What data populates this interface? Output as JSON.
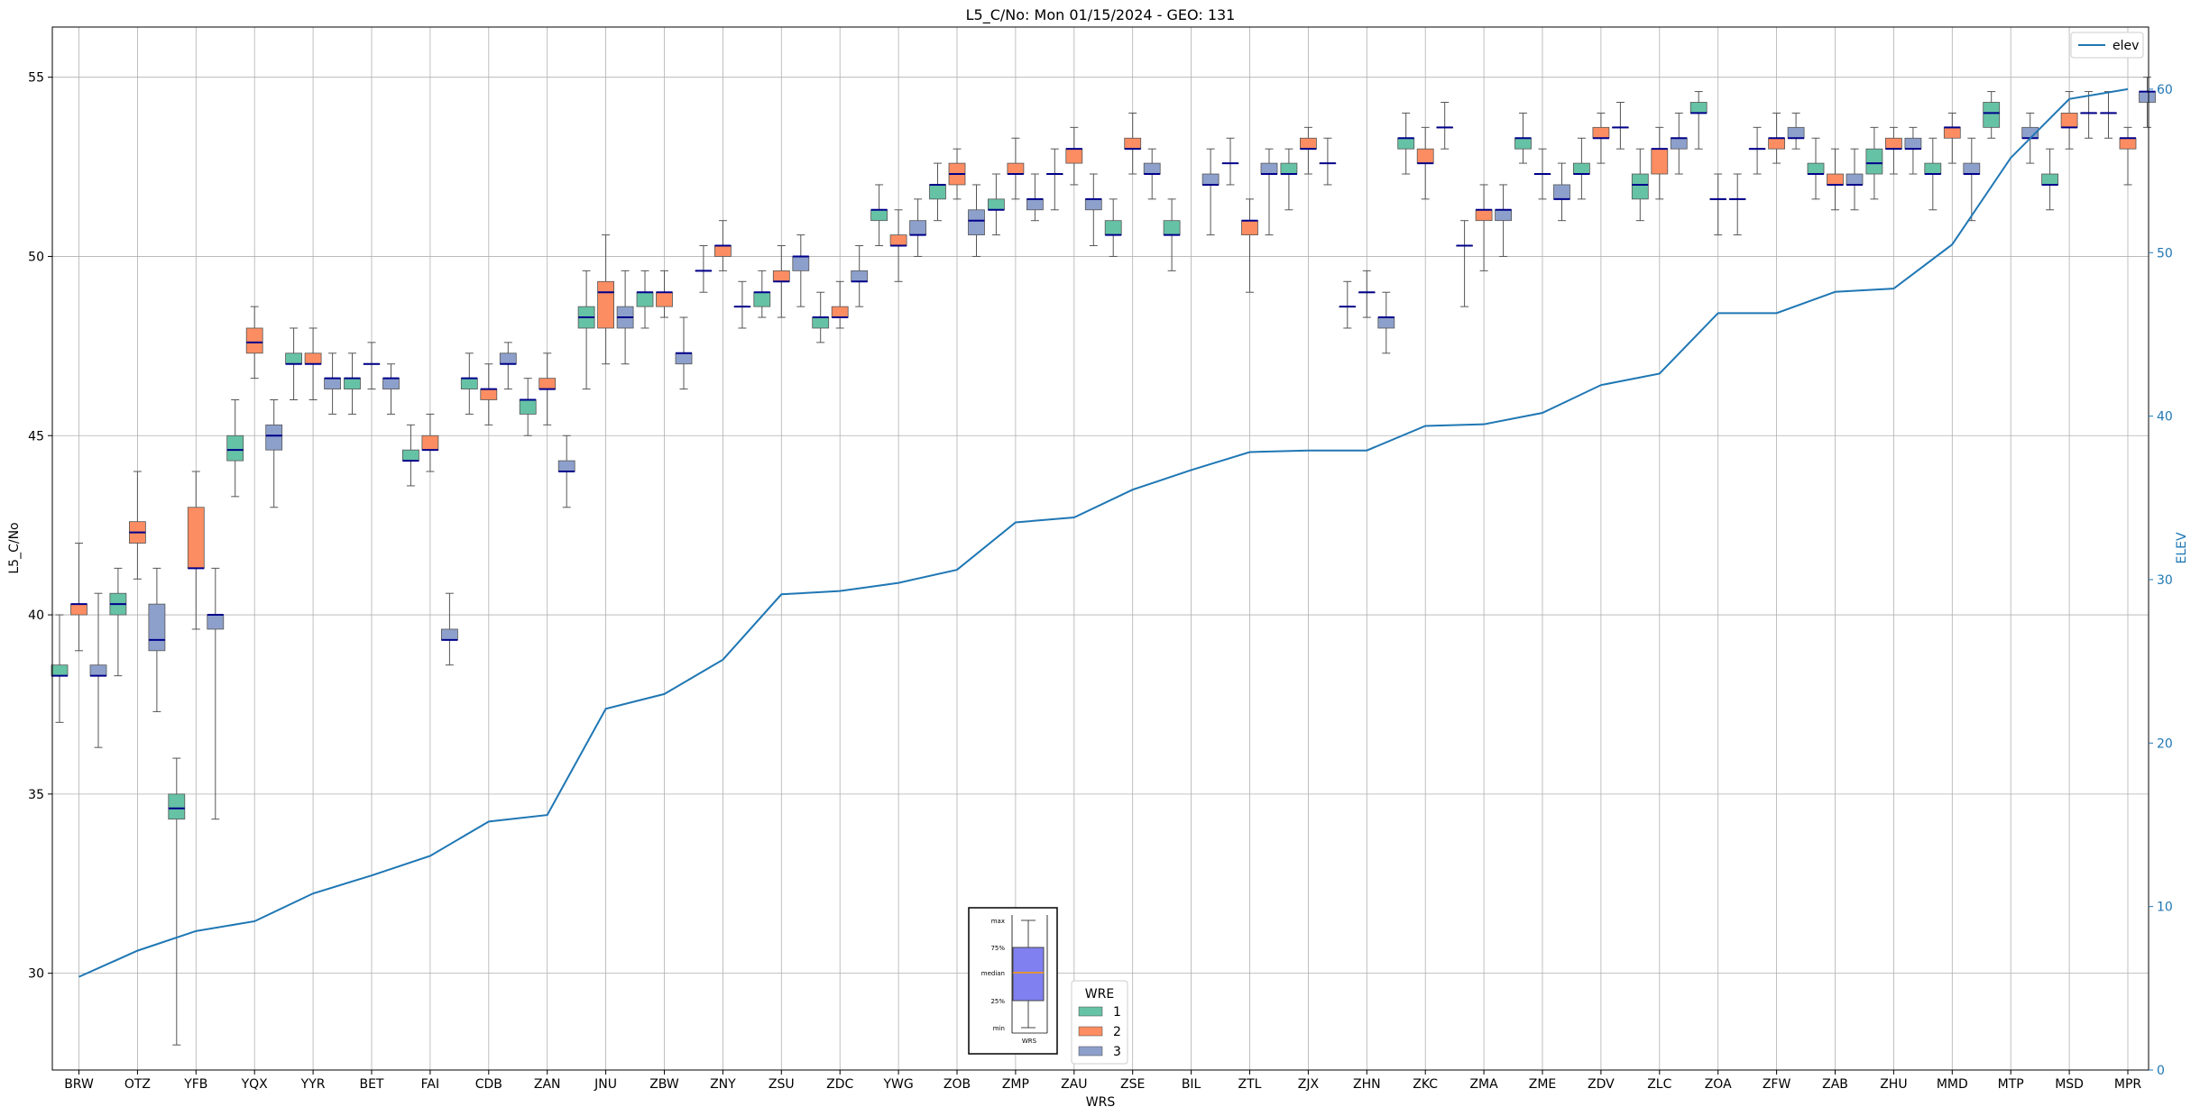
{
  "chart_data": {
    "type": "box",
    "title": "L5_C/No: Mon 01/15/2024 - GEO: 131",
    "xlabel": "WRS",
    "ylabel": "L5_C/No",
    "ylabel2": "ELEV",
    "ylim": [
      27.3,
      56.4
    ],
    "ylim2": [
      0,
      63.8
    ],
    "yticks": [
      30,
      35,
      40,
      45,
      50,
      55
    ],
    "yticks2": [
      0,
      10,
      20,
      30,
      40,
      50,
      60
    ],
    "grid": true,
    "categories": [
      "BRW",
      "OTZ",
      "YFB",
      "YQX",
      "YYR",
      "BET",
      "FAI",
      "CDB",
      "ZAN",
      "JNU",
      "ZBW",
      "ZNY",
      "ZSU",
      "ZDC",
      "YWG",
      "ZOB",
      "ZMP",
      "ZAU",
      "ZSE",
      "BIL",
      "ZTL",
      "ZJX",
      "ZHN",
      "ZKC",
      "ZMA",
      "ZME",
      "ZDV",
      "ZLC",
      "ZOA",
      "ZFW",
      "ZAB",
      "ZHU",
      "MMD",
      "MTP",
      "MSD",
      "MPR"
    ],
    "wre_colors": {
      "1": "#66c2a5",
      "2": "#fc8d62",
      "3": "#8da0cb"
    },
    "median_color": "#00008b",
    "boxes": [
      {
        "cat": "BRW",
        "wre": 1,
        "min": 37.0,
        "q1": 38.3,
        "med": 38.3,
        "q3": 38.6,
        "max": 40.0
      },
      {
        "cat": "BRW",
        "wre": 2,
        "min": 39.0,
        "q1": 40.0,
        "med": 40.3,
        "q3": 40.3,
        "max": 42.0
      },
      {
        "cat": "BRW",
        "wre": 3,
        "min": 36.3,
        "q1": 38.3,
        "med": 38.3,
        "q3": 38.6,
        "max": 40.6
      },
      {
        "cat": "OTZ",
        "wre": 1,
        "min": 38.3,
        "q1": 40.0,
        "med": 40.3,
        "q3": 40.6,
        "max": 41.3
      },
      {
        "cat": "OTZ",
        "wre": 2,
        "min": 41.0,
        "q1": 42.0,
        "med": 42.3,
        "q3": 42.6,
        "max": 44.0
      },
      {
        "cat": "OTZ",
        "wre": 3,
        "min": 37.3,
        "q1": 39.0,
        "med": 39.3,
        "q3": 40.3,
        "max": 41.3
      },
      {
        "cat": "YFB",
        "wre": 1,
        "min": 28.0,
        "q1": 34.3,
        "med": 34.6,
        "q3": 35.0,
        "max": 36.0
      },
      {
        "cat": "YFB",
        "wre": 2,
        "min": 39.6,
        "q1": 41.3,
        "med": 41.3,
        "q3": 43.0,
        "max": 44.0
      },
      {
        "cat": "YFB",
        "wre": 3,
        "min": 34.3,
        "q1": 39.6,
        "med": 40.0,
        "q3": 40.0,
        "max": 41.3
      },
      {
        "cat": "YQX",
        "wre": 1,
        "min": 43.3,
        "q1": 44.3,
        "med": 44.6,
        "q3": 45.0,
        "max": 46.0
      },
      {
        "cat": "YQX",
        "wre": 2,
        "min": 46.6,
        "q1": 47.3,
        "med": 47.6,
        "q3": 48.0,
        "max": 48.6
      },
      {
        "cat": "YQX",
        "wre": 3,
        "min": 43.0,
        "q1": 44.6,
        "med": 45.0,
        "q3": 45.3,
        "max": 46.0
      },
      {
        "cat": "YYR",
        "wre": 1,
        "min": 46.0,
        "q1": 47.0,
        "med": 47.0,
        "q3": 47.3,
        "max": 48.0
      },
      {
        "cat": "YYR",
        "wre": 2,
        "min": 46.0,
        "q1": 47.0,
        "med": 47.0,
        "q3": 47.3,
        "max": 48.0
      },
      {
        "cat": "YYR",
        "wre": 3,
        "min": 45.6,
        "q1": 46.3,
        "med": 46.6,
        "q3": 46.6,
        "max": 47.3
      },
      {
        "cat": "BET",
        "wre": 1,
        "min": 45.6,
        "q1": 46.3,
        "med": 46.6,
        "q3": 46.6,
        "max": 47.3
      },
      {
        "cat": "BET",
        "wre": 2,
        "min": 46.3,
        "q1": 47.0,
        "med": 47.0,
        "q3": 47.0,
        "max": 47.6
      },
      {
        "cat": "BET",
        "wre": 3,
        "min": 45.6,
        "q1": 46.3,
        "med": 46.6,
        "q3": 46.6,
        "max": 47.0
      },
      {
        "cat": "FAI",
        "wre": 1,
        "min": 43.6,
        "q1": 44.3,
        "med": 44.3,
        "q3": 44.6,
        "max": 45.3
      },
      {
        "cat": "FAI",
        "wre": 2,
        "min": 44.0,
        "q1": 44.6,
        "med": 44.6,
        "q3": 45.0,
        "max": 45.6
      },
      {
        "cat": "FAI",
        "wre": 3,
        "min": 38.6,
        "q1": 39.3,
        "med": 39.3,
        "q3": 39.6,
        "max": 40.6
      },
      {
        "cat": "CDB",
        "wre": 1,
        "min": 45.6,
        "q1": 46.3,
        "med": 46.6,
        "q3": 46.6,
        "max": 47.3
      },
      {
        "cat": "CDB",
        "wre": 2,
        "min": 45.3,
        "q1": 46.0,
        "med": 46.3,
        "q3": 46.3,
        "max": 47.0
      },
      {
        "cat": "CDB",
        "wre": 3,
        "min": 46.3,
        "q1": 47.0,
        "med": 47.0,
        "q3": 47.3,
        "max": 47.6
      },
      {
        "cat": "ZAN",
        "wre": 1,
        "min": 45.0,
        "q1": 45.6,
        "med": 46.0,
        "q3": 46.0,
        "max": 46.6
      },
      {
        "cat": "ZAN",
        "wre": 2,
        "min": 45.3,
        "q1": 46.3,
        "med": 46.3,
        "q3": 46.6,
        "max": 47.3
      },
      {
        "cat": "ZAN",
        "wre": 3,
        "min": 43.0,
        "q1": 44.0,
        "med": 44.0,
        "q3": 44.3,
        "max": 45.0
      },
      {
        "cat": "JNU",
        "wre": 1,
        "min": 46.3,
        "q1": 48.0,
        "med": 48.3,
        "q3": 48.6,
        "max": 49.6
      },
      {
        "cat": "JNU",
        "wre": 2,
        "min": 47.0,
        "q1": 48.0,
        "med": 49.0,
        "q3": 49.3,
        "max": 50.6
      },
      {
        "cat": "JNU",
        "wre": 3,
        "min": 47.0,
        "q1": 48.0,
        "med": 48.3,
        "q3": 48.6,
        "max": 49.6
      },
      {
        "cat": "ZBW",
        "wre": 1,
        "min": 48.0,
        "q1": 48.6,
        "med": 49.0,
        "q3": 49.0,
        "max": 49.6
      },
      {
        "cat": "ZBW",
        "wre": 2,
        "min": 48.3,
        "q1": 48.6,
        "med": 49.0,
        "q3": 49.0,
        "max": 49.6
      },
      {
        "cat": "ZBW",
        "wre": 3,
        "min": 46.3,
        "q1": 47.0,
        "med": 47.3,
        "q3": 47.3,
        "max": 48.3
      },
      {
        "cat": "ZNY",
        "wre": 1,
        "min": 49.0,
        "q1": 49.6,
        "med": 49.6,
        "q3": 49.6,
        "max": 50.3
      },
      {
        "cat": "ZNY",
        "wre": 2,
        "min": 49.6,
        "q1": 50.0,
        "med": 50.3,
        "q3": 50.3,
        "max": 51.0
      },
      {
        "cat": "ZNY",
        "wre": 3,
        "min": 48.0,
        "q1": 48.6,
        "med": 48.6,
        "q3": 48.6,
        "max": 49.3
      },
      {
        "cat": "ZSU",
        "wre": 1,
        "min": 48.3,
        "q1": 48.6,
        "med": 49.0,
        "q3": 49.0,
        "max": 49.6
      },
      {
        "cat": "ZSU",
        "wre": 2,
        "min": 48.3,
        "q1": 49.3,
        "med": 49.3,
        "q3": 49.6,
        "max": 50.3
      },
      {
        "cat": "ZSU",
        "wre": 3,
        "min": 48.6,
        "q1": 49.6,
        "med": 50.0,
        "q3": 50.0,
        "max": 50.6
      },
      {
        "cat": "ZDC",
        "wre": 1,
        "min": 47.6,
        "q1": 48.0,
        "med": 48.3,
        "q3": 48.3,
        "max": 49.0
      },
      {
        "cat": "ZDC",
        "wre": 2,
        "min": 48.0,
        "q1": 48.3,
        "med": 48.3,
        "q3": 48.6,
        "max": 49.3
      },
      {
        "cat": "ZDC",
        "wre": 3,
        "min": 48.6,
        "q1": 49.3,
        "med": 49.3,
        "q3": 49.6,
        "max": 50.3
      },
      {
        "cat": "YWG",
        "wre": 1,
        "min": 50.3,
        "q1": 51.0,
        "med": 51.3,
        "q3": 51.3,
        "max": 52.0
      },
      {
        "cat": "YWG",
        "wre": 2,
        "min": 49.3,
        "q1": 50.3,
        "med": 50.3,
        "q3": 50.6,
        "max": 51.3
      },
      {
        "cat": "YWG",
        "wre": 3,
        "min": 50.0,
        "q1": 50.6,
        "med": 50.6,
        "q3": 51.0,
        "max": 51.6
      },
      {
        "cat": "ZOB",
        "wre": 1,
        "min": 51.0,
        "q1": 51.6,
        "med": 52.0,
        "q3": 52.0,
        "max": 52.6
      },
      {
        "cat": "ZOB",
        "wre": 2,
        "min": 51.6,
        "q1": 52.0,
        "med": 52.3,
        "q3": 52.6,
        "max": 53.0
      },
      {
        "cat": "ZOB",
        "wre": 3,
        "min": 50.0,
        "q1": 50.6,
        "med": 51.0,
        "q3": 51.3,
        "max": 52.0
      },
      {
        "cat": "ZMP",
        "wre": 1,
        "min": 50.6,
        "q1": 51.3,
        "med": 51.3,
        "q3": 51.6,
        "max": 52.3
      },
      {
        "cat": "ZMP",
        "wre": 2,
        "min": 51.6,
        "q1": 52.3,
        "med": 52.3,
        "q3": 52.6,
        "max": 53.3
      },
      {
        "cat": "ZMP",
        "wre": 3,
        "min": 51.0,
        "q1": 51.3,
        "med": 51.6,
        "q3": 51.6,
        "max": 52.3
      },
      {
        "cat": "ZAU",
        "wre": 1,
        "min": 51.3,
        "q1": 52.3,
        "med": 52.3,
        "q3": 52.3,
        "max": 53.0
      },
      {
        "cat": "ZAU",
        "wre": 2,
        "min": 52.0,
        "q1": 52.6,
        "med": 53.0,
        "q3": 53.0,
        "max": 53.6
      },
      {
        "cat": "ZAU",
        "wre": 3,
        "min": 50.3,
        "q1": 51.3,
        "med": 51.6,
        "q3": 51.6,
        "max": 52.3
      },
      {
        "cat": "ZSE",
        "wre": 1,
        "min": 50.0,
        "q1": 50.6,
        "med": 50.6,
        "q3": 51.0,
        "max": 51.6
      },
      {
        "cat": "ZSE",
        "wre": 2,
        "min": 52.3,
        "q1": 53.0,
        "med": 53.0,
        "q3": 53.3,
        "max": 54.0
      },
      {
        "cat": "ZSE",
        "wre": 3,
        "min": 51.6,
        "q1": 52.3,
        "med": 52.3,
        "q3": 52.6,
        "max": 53.0
      },
      {
        "cat": "BIL",
        "wre": 1,
        "min": 49.6,
        "q1": 50.6,
        "med": 50.6,
        "q3": 51.0,
        "max": 51.6
      },
      {
        "cat": "BIL",
        "wre": 3,
        "min": 50.6,
        "q1": 52.0,
        "med": 52.0,
        "q3": 52.3,
        "max": 53.0
      },
      {
        "cat": "ZTL",
        "wre": 1,
        "min": 52.0,
        "q1": 52.6,
        "med": 52.6,
        "q3": 52.6,
        "max": 53.3
      },
      {
        "cat": "ZTL",
        "wre": 2,
        "min": 49.0,
        "q1": 50.6,
        "med": 51.0,
        "q3": 51.0,
        "max": 51.6
      },
      {
        "cat": "ZTL",
        "wre": 3,
        "min": 50.6,
        "q1": 52.3,
        "med": 52.3,
        "q3": 52.6,
        "max": 53.0
      },
      {
        "cat": "ZJX",
        "wre": 1,
        "min": 51.3,
        "q1": 52.3,
        "med": 52.3,
        "q3": 52.6,
        "max": 53.0
      },
      {
        "cat": "ZJX",
        "wre": 2,
        "min": 52.3,
        "q1": 53.0,
        "med": 53.0,
        "q3": 53.3,
        "max": 53.6
      },
      {
        "cat": "ZJX",
        "wre": 3,
        "min": 52.0,
        "q1": 52.6,
        "med": 52.6,
        "q3": 52.6,
        "max": 53.3
      },
      {
        "cat": "ZHN",
        "wre": 1,
        "min": 48.0,
        "q1": 48.6,
        "med": 48.6,
        "q3": 48.6,
        "max": 49.3
      },
      {
        "cat": "ZHN",
        "wre": 2,
        "min": 48.3,
        "q1": 49.0,
        "med": 49.0,
        "q3": 49.0,
        "max": 49.6
      },
      {
        "cat": "ZHN",
        "wre": 3,
        "min": 47.3,
        "q1": 48.0,
        "med": 48.3,
        "q3": 48.3,
        "max": 49.0
      },
      {
        "cat": "ZKC",
        "wre": 1,
        "min": 52.3,
        "q1": 53.0,
        "med": 53.3,
        "q3": 53.3,
        "max": 54.0
      },
      {
        "cat": "ZKC",
        "wre": 2,
        "min": 51.6,
        "q1": 52.6,
        "med": 52.6,
        "q3": 53.0,
        "max": 53.6
      },
      {
        "cat": "ZKC",
        "wre": 3,
        "min": 53.0,
        "q1": 53.6,
        "med": 53.6,
        "q3": 53.6,
        "max": 54.3
      },
      {
        "cat": "ZMA",
        "wre": 1,
        "min": 48.6,
        "q1": 50.3,
        "med": 50.3,
        "q3": 50.3,
        "max": 51.0
      },
      {
        "cat": "ZMA",
        "wre": 2,
        "min": 49.6,
        "q1": 51.0,
        "med": 51.3,
        "q3": 51.3,
        "max": 52.0
      },
      {
        "cat": "ZMA",
        "wre": 3,
        "min": 50.0,
        "q1": 51.0,
        "med": 51.3,
        "q3": 51.3,
        "max": 52.0
      },
      {
        "cat": "ZME",
        "wre": 1,
        "min": 52.6,
        "q1": 53.0,
        "med": 53.3,
        "q3": 53.3,
        "max": 54.0
      },
      {
        "cat": "ZME",
        "wre": 2,
        "min": 51.6,
        "q1": 52.3,
        "med": 52.3,
        "q3": 52.3,
        "max": 53.0
      },
      {
        "cat": "ZME",
        "wre": 3,
        "min": 51.0,
        "q1": 51.6,
        "med": 51.6,
        "q3": 52.0,
        "max": 52.6
      },
      {
        "cat": "ZDV",
        "wre": 1,
        "min": 51.6,
        "q1": 52.3,
        "med": 52.3,
        "q3": 52.6,
        "max": 53.3
      },
      {
        "cat": "ZDV",
        "wre": 2,
        "min": 52.6,
        "q1": 53.3,
        "med": 53.3,
        "q3": 53.6,
        "max": 54.0
      },
      {
        "cat": "ZDV",
        "wre": 3,
        "min": 53.0,
        "q1": 53.6,
        "med": 53.6,
        "q3": 53.6,
        "max": 54.3
      },
      {
        "cat": "ZLC",
        "wre": 1,
        "min": 51.0,
        "q1": 51.6,
        "med": 52.0,
        "q3": 52.3,
        "max": 53.0
      },
      {
        "cat": "ZLC",
        "wre": 2,
        "min": 51.6,
        "q1": 52.3,
        "med": 53.0,
        "q3": 53.0,
        "max": 53.6
      },
      {
        "cat": "ZLC",
        "wre": 3,
        "min": 52.3,
        "q1": 53.0,
        "med": 53.3,
        "q3": 53.3,
        "max": 54.0
      },
      {
        "cat": "ZOA",
        "wre": 1,
        "min": 53.0,
        "q1": 54.0,
        "med": 54.0,
        "q3": 54.3,
        "max": 54.6
      },
      {
        "cat": "ZOA",
        "wre": 2,
        "min": 50.6,
        "q1": 51.6,
        "med": 51.6,
        "q3": 51.6,
        "max": 52.3
      },
      {
        "cat": "ZOA",
        "wre": 3,
        "min": 50.6,
        "q1": 51.6,
        "med": 51.6,
        "q3": 51.6,
        "max": 52.3
      },
      {
        "cat": "ZFW",
        "wre": 1,
        "min": 52.3,
        "q1": 53.0,
        "med": 53.0,
        "q3": 53.0,
        "max": 53.6
      },
      {
        "cat": "ZFW",
        "wre": 2,
        "min": 52.6,
        "q1": 53.0,
        "med": 53.3,
        "q3": 53.3,
        "max": 54.0
      },
      {
        "cat": "ZFW",
        "wre": 3,
        "min": 53.0,
        "q1": 53.3,
        "med": 53.3,
        "q3": 53.6,
        "max": 54.0
      },
      {
        "cat": "ZAB",
        "wre": 1,
        "min": 51.6,
        "q1": 52.3,
        "med": 52.3,
        "q3": 52.6,
        "max": 53.3
      },
      {
        "cat": "ZAB",
        "wre": 2,
        "min": 51.3,
        "q1": 52.0,
        "med": 52.0,
        "q3": 52.3,
        "max": 53.0
      },
      {
        "cat": "ZAB",
        "wre": 3,
        "min": 51.3,
        "q1": 52.0,
        "med": 52.0,
        "q3": 52.3,
        "max": 53.0
      },
      {
        "cat": "ZHU",
        "wre": 1,
        "min": 51.6,
        "q1": 52.3,
        "med": 52.6,
        "q3": 53.0,
        "max": 53.6
      },
      {
        "cat": "ZHU",
        "wre": 2,
        "min": 52.3,
        "q1": 53.0,
        "med": 53.0,
        "q3": 53.3,
        "max": 53.6
      },
      {
        "cat": "ZHU",
        "wre": 3,
        "min": 52.3,
        "q1": 53.0,
        "med": 53.0,
        "q3": 53.3,
        "max": 53.6
      },
      {
        "cat": "MMD",
        "wre": 1,
        "min": 51.3,
        "q1": 52.3,
        "med": 52.3,
        "q3": 52.6,
        "max": 53.3
      },
      {
        "cat": "MMD",
        "wre": 2,
        "min": 52.6,
        "q1": 53.3,
        "med": 53.6,
        "q3": 53.6,
        "max": 54.0
      },
      {
        "cat": "MMD",
        "wre": 3,
        "min": 51.0,
        "q1": 52.3,
        "med": 52.3,
        "q3": 52.6,
        "max": 53.3
      },
      {
        "cat": "MTP",
        "wre": 1,
        "min": 53.3,
        "q1": 53.6,
        "med": 54.0,
        "q3": 54.3,
        "max": 54.6
      },
      {
        "cat": "MTP",
        "wre": 3,
        "min": 52.6,
        "q1": 53.3,
        "med": 53.3,
        "q3": 53.6,
        "max": 54.0
      },
      {
        "cat": "MSD",
        "wre": 1,
        "min": 51.3,
        "q1": 52.0,
        "med": 52.0,
        "q3": 52.3,
        "max": 53.0
      },
      {
        "cat": "MSD",
        "wre": 2,
        "min": 53.0,
        "q1": 53.6,
        "med": 53.6,
        "q3": 54.0,
        "max": 54.6
      },
      {
        "cat": "MSD",
        "wre": 3,
        "min": 53.3,
        "q1": 54.0,
        "med": 54.0,
        "q3": 54.0,
        "max": 54.6
      },
      {
        "cat": "MPR",
        "wre": 1,
        "min": 53.3,
        "q1": 54.0,
        "med": 54.0,
        "q3": 54.0,
        "max": 54.6
      },
      {
        "cat": "MPR",
        "wre": 2,
        "min": 52.0,
        "q1": 53.0,
        "med": 53.3,
        "q3": 53.3,
        "max": 53.6
      },
      {
        "cat": "MPR",
        "wre": 3,
        "min": 53.6,
        "q1": 54.3,
        "med": 54.6,
        "q3": 54.6,
        "max": 55.0
      }
    ],
    "elev_series": {
      "name": "elev",
      "color": "#1f77b4",
      "values": [
        5.7,
        7.3,
        8.5,
        9.1,
        10.8,
        11.9,
        13.1,
        15.2,
        15.6,
        22.1,
        23.0,
        25.1,
        29.1,
        29.3,
        29.8,
        30.6,
        33.5,
        33.8,
        35.5,
        36.7,
        37.8,
        37.9,
        37.9,
        39.4,
        39.5,
        40.2,
        41.9,
        42.6,
        46.3,
        46.3,
        47.6,
        47.8,
        50.5,
        55.8,
        59.4,
        60.0
      ]
    },
    "legend": {
      "title": "WRE",
      "position": "bottom-center",
      "entries": [
        {
          "label": "1",
          "color": "#66c2a5"
        },
        {
          "label": "2",
          "color": "#fc8d62"
        },
        {
          "label": "3",
          "color": "#8da0cb"
        }
      ]
    },
    "legend2": {
      "position": "top-right",
      "entries": [
        {
          "label": "elev",
          "color": "#1f77b4"
        }
      ]
    },
    "box_key": {
      "labels": [
        "max",
        "75%",
        "median",
        "25%",
        "min"
      ],
      "xlabel": "WRS",
      "fill": "#8080f0",
      "median_color": "#ff9900"
    }
  }
}
